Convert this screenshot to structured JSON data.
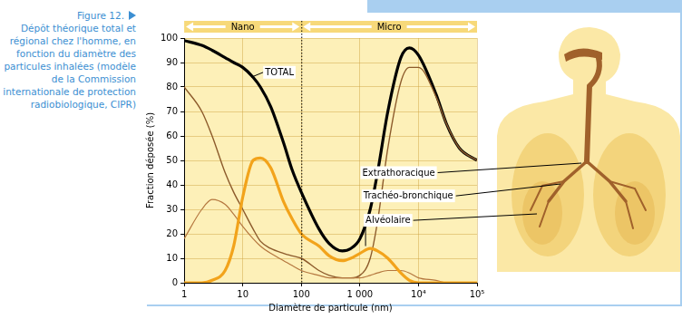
{
  "caption": {
    "label": "Figure 12.",
    "text": "Dépôt théorique total et régional chez l'homme, en fonction du diamètre des particules inhalées (modèle de la Commission internationale de protection radiobiologique, CIPR)"
  },
  "chart_data": {
    "type": "line",
    "xlabel": "Diamètre de particule (nm)",
    "ylabel": "Fraction déposée (%)",
    "log": "x",
    "grid": true,
    "xlim": [
      1,
      100000
    ],
    "xticks": [
      1,
      10,
      100,
      {
        "value": 1000,
        "label": "1 000"
      },
      {
        "value": 10000,
        "label": "10⁴"
      },
      {
        "value": 100000,
        "label": "10⁵"
      }
    ],
    "ylim": [
      0,
      100
    ],
    "yticks": [
      0,
      10,
      20,
      30,
      40,
      50,
      60,
      70,
      80,
      90,
      100
    ],
    "regions": [
      {
        "label": "Nano",
        "from": 1,
        "to": 100
      },
      {
        "label": "Micro",
        "from": 100,
        "to": 100000
      }
    ],
    "x": [
      1,
      2,
      3,
      5,
      7,
      10,
      15,
      20,
      30,
      50,
      70,
      100,
      200,
      300,
      500,
      700,
      1000,
      1500,
      2000,
      3000,
      5000,
      7000,
      10000,
      20000,
      30000,
      50000,
      100000
    ],
    "series": [
      {
        "name": "TOTAL",
        "color": "#000000",
        "values": [
          99,
          97,
          95,
          92,
          90,
          88,
          84,
          80,
          72,
          57,
          46,
          37,
          22,
          16,
          13,
          14,
          18,
          30,
          45,
          70,
          92,
          96,
          93,
          77,
          65,
          55,
          50
        ]
      },
      {
        "name": "Extrathoracique",
        "color": "#8c5a2b",
        "values": [
          80,
          70,
          60,
          45,
          37,
          30,
          22,
          17,
          14,
          12,
          11,
          10,
          5,
          3,
          2,
          2,
          3,
          10,
          25,
          55,
          82,
          88,
          88,
          76,
          65,
          55,
          50
        ]
      },
      {
        "name": "Trachéo-bronchique",
        "color": "#b5773f",
        "values": [
          18,
          30,
          34,
          32,
          28,
          23,
          18,
          15,
          12,
          9,
          7,
          5,
          3,
          2,
          2,
          2,
          2,
          3,
          4,
          5,
          5,
          4,
          2,
          1,
          0,
          0,
          0
        ]
      },
      {
        "name": "Alvéolaire",
        "color": "#f2a31b",
        "values": [
          0,
          0,
          1,
          5,
          15,
          35,
          50,
          51,
          47,
          33,
          26,
          20,
          15,
          11,
          9,
          10,
          12,
          14,
          13,
          10,
          4,
          1,
          0,
          0,
          0,
          0,
          0
        ]
      }
    ]
  }
}
